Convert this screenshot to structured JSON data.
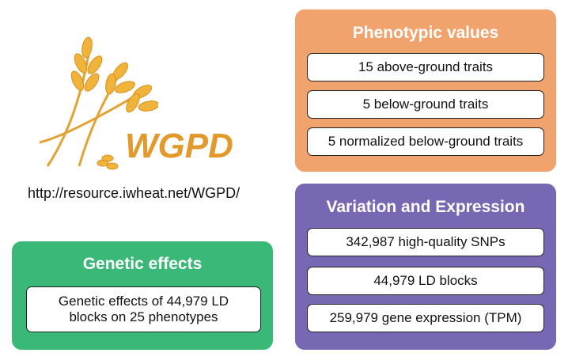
{
  "logo": {
    "text": "WGPD"
  },
  "url": "http://resource.iwheat.net/WGPD/",
  "panels": [
    {
      "title": "Phenotypic values",
      "items": [
        "15 above-ground traits",
        "5 below-ground traits",
        "5 normalized below-ground traits"
      ]
    },
    {
      "title": "Variation and Expression",
      "items": [
        "342,987 high-quality SNPs",
        "44,979 LD blocks",
        "259,979 gene expression (TPM)"
      ]
    },
    {
      "title": "Genetic effects",
      "items": [
        "Genetic effects of 44,979 LD blocks on 25 phenotypes"
      ]
    }
  ]
}
